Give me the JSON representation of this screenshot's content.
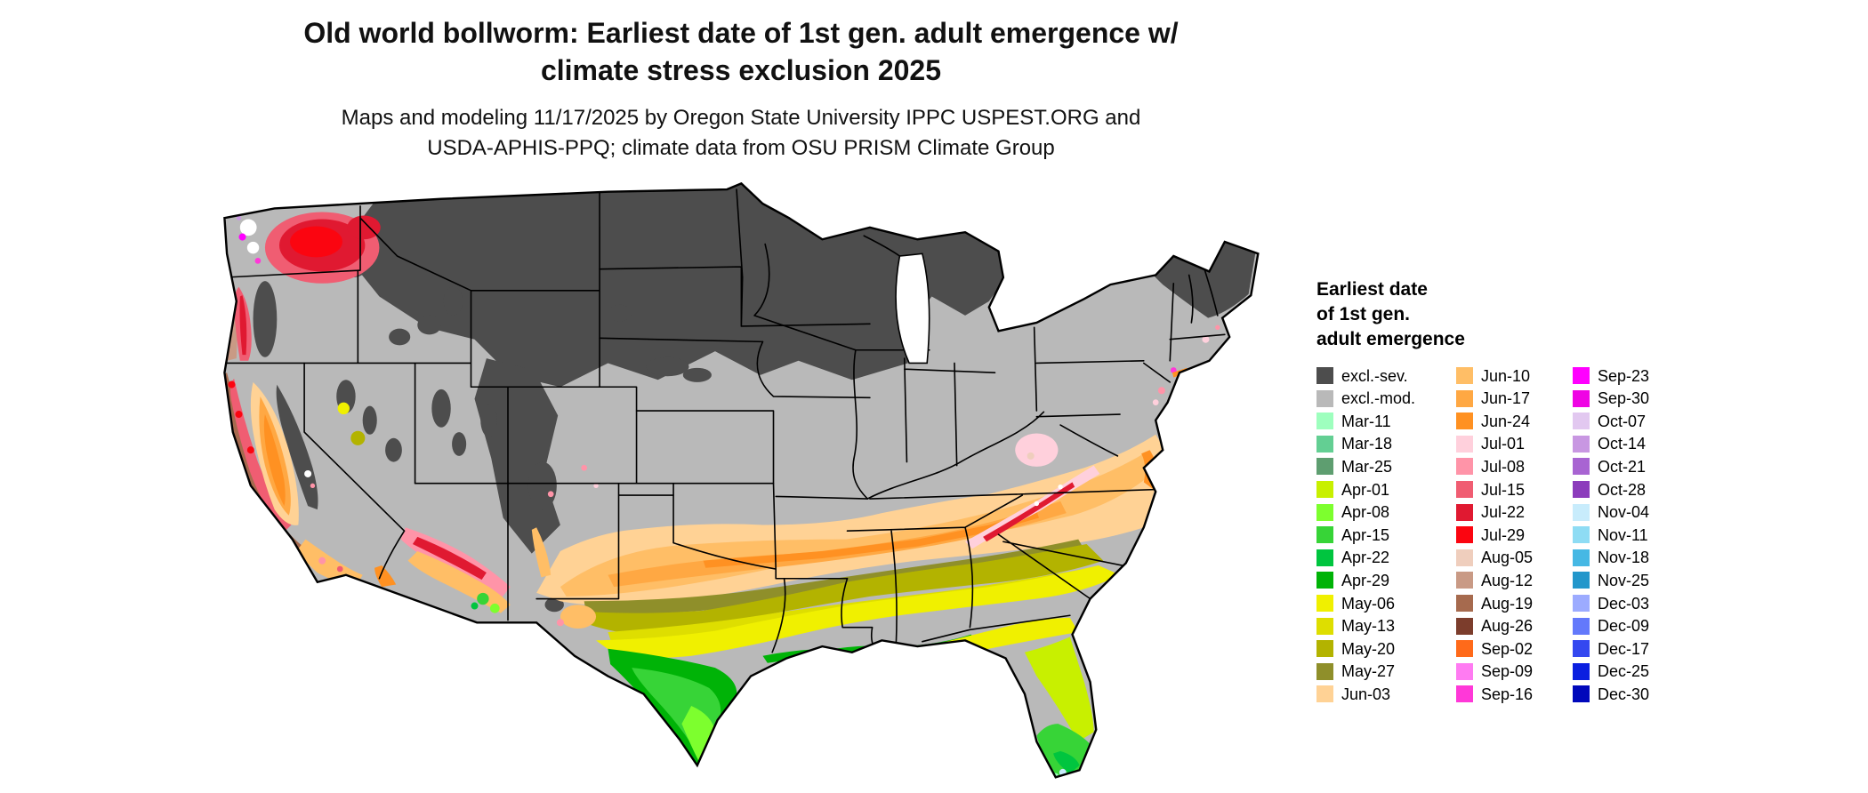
{
  "title": {
    "line1": "Old world bollworm: Earliest date of 1st gen. adult emergence w/",
    "line2": "climate stress exclusion 2025"
  },
  "subtitle": {
    "line1": "Maps and modeling 11/17/2025 by Oregon State University IPPC USPEST.ORG and",
    "line2": "USDA-APHIS-PPQ; climate data from OSU PRISM Climate Group"
  },
  "legend": {
    "title": "Earliest date\nof 1st gen.\nadult emergence",
    "columns": [
      {
        "entries": [
          {
            "label": "excl.-sev.",
            "color": "#4d4d4d"
          },
          {
            "label": "excl.-mod.",
            "color": "#b9b9b9"
          },
          {
            "label": "Mar-11",
            "color": "#9effbe"
          },
          {
            "label": "Mar-18",
            "color": "#63cf93"
          },
          {
            "label": "Mar-25",
            "color": "#5e9e70"
          },
          {
            "label": "Apr-01",
            "color": "#c8f000"
          },
          {
            "label": "Apr-08",
            "color": "#7dff2e"
          },
          {
            "label": "Apr-15",
            "color": "#37d437"
          },
          {
            "label": "Apr-22",
            "color": "#00c53f"
          },
          {
            "label": "Apr-29",
            "color": "#00b307"
          },
          {
            "label": "May-06",
            "color": "#f0f000"
          },
          {
            "label": "May-13",
            "color": "#dede00"
          },
          {
            "label": "May-20",
            "color": "#b3b300"
          },
          {
            "label": "May-27",
            "color": "#8f8f2a"
          },
          {
            "label": "Jun-03",
            "color": "#ffd295"
          }
        ]
      },
      {
        "entries": [
          {
            "label": "Jun-10",
            "color": "#ffbe66"
          },
          {
            "label": "Jun-17",
            "color": "#ffa843"
          },
          {
            "label": "Jun-24",
            "color": "#ff9122"
          },
          {
            "label": "Jul-01",
            "color": "#ffd0dc"
          },
          {
            "label": "Jul-08",
            "color": "#ff94a8"
          },
          {
            "label": "Jul-15",
            "color": "#f05d72"
          },
          {
            "label": "Jul-22",
            "color": "#e01931"
          },
          {
            "label": "Jul-29",
            "color": "#fb0510"
          },
          {
            "label": "Aug-05",
            "color": "#efcebd"
          },
          {
            "label": "Aug-12",
            "color": "#c99a85"
          },
          {
            "label": "Aug-19",
            "color": "#a66a4e"
          },
          {
            "label": "Aug-26",
            "color": "#7c3d2c"
          },
          {
            "label": "Sep-02",
            "color": "#ff6a1a"
          },
          {
            "label": "Sep-09",
            "color": "#ff7bf2"
          },
          {
            "label": "Sep-16",
            "color": "#ff38d8"
          }
        ]
      },
      {
        "entries": [
          {
            "label": "Sep-23",
            "color": "#ff00ff"
          },
          {
            "label": "Sep-30",
            "color": "#ef04e4"
          },
          {
            "label": "Oct-07",
            "color": "#e2c8f0"
          },
          {
            "label": "Oct-14",
            "color": "#c897e2"
          },
          {
            "label": "Oct-21",
            "color": "#a864d2"
          },
          {
            "label": "Oct-28",
            "color": "#8c3cbc"
          },
          {
            "label": "Nov-04",
            "color": "#c8ecfc"
          },
          {
            "label": "Nov-11",
            "color": "#8edcf4"
          },
          {
            "label": "Nov-18",
            "color": "#46b8e4"
          },
          {
            "label": "Nov-25",
            "color": "#2397cb"
          },
          {
            "label": "Dec-03",
            "color": "#9cabff"
          },
          {
            "label": "Dec-09",
            "color": "#6379fb"
          },
          {
            "label": "Dec-17",
            "color": "#3448f0"
          },
          {
            "label": "Dec-25",
            "color": "#0b1fe0"
          },
          {
            "label": "Dec-30",
            "color": "#0008bb"
          }
        ]
      }
    ]
  },
  "palette": {
    "exclSev": "#4d4d4d",
    "exclMod": "#b9b9b9",
    "mar11": "#9effbe",
    "mar18": "#63cf93",
    "mar25": "#5e9e70",
    "apr01": "#c8f000",
    "apr08": "#7dff2e",
    "apr15": "#37d437",
    "apr22": "#00c53f",
    "apr29": "#00b307",
    "may06": "#f0f000",
    "may13": "#dede00",
    "may20": "#b3b300",
    "may27": "#8f8f2a",
    "jun03": "#ffd295",
    "jun10": "#ffbe66",
    "jun17": "#ffa843",
    "jun24": "#ff9122",
    "jul01": "#ffd0dc",
    "jul08": "#ff94a8",
    "jul15": "#f05d72",
    "jul22": "#e01931",
    "jul29": "#fb0510",
    "aug05": "#efcebd",
    "aug12": "#c99a85",
    "aug19": "#a66a4e",
    "aug26": "#7c3d2c",
    "sep02": "#ff6a1a",
    "sep09": "#ff7bf2",
    "sep16": "#ff38d8",
    "sep23": "#ff00ff",
    "oct14": "#c897e2",
    "nov04": "#c8ecfc",
    "white": "#ffffff"
  }
}
